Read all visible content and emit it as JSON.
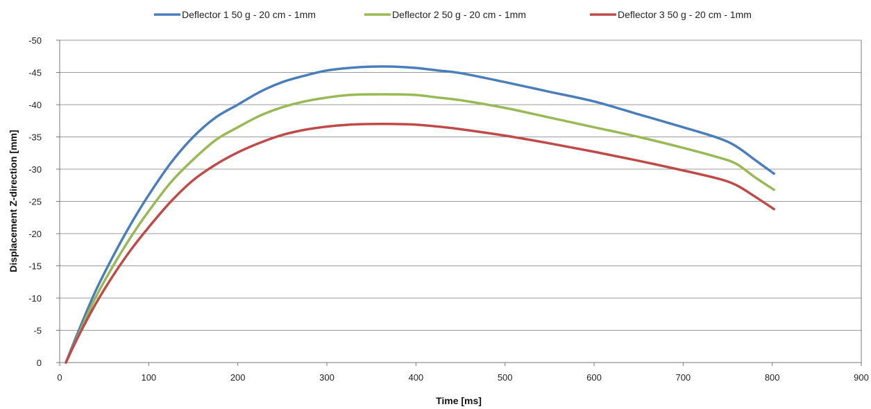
{
  "chart_data": {
    "type": "line",
    "xlabel": "Time [ms]",
    "ylabel": "Displacement Z-direction [mm]",
    "xlim": [
      0,
      900
    ],
    "ylim": [
      0,
      -50
    ],
    "y_axis_inverted": true,
    "xticks": [
      0,
      100,
      200,
      300,
      400,
      500,
      600,
      700,
      800,
      900
    ],
    "yticks": [
      0,
      -5,
      -10,
      -15,
      -20,
      -25,
      -30,
      -35,
      -40,
      -45,
      -50
    ],
    "grid": "horizontal",
    "legend_position": "top",
    "series": [
      {
        "name": "Deflector 1 50 g - 20 cm - 1mm",
        "color": "#4a7ebb",
        "x": [
          7,
          20,
          40,
          60,
          80,
          100,
          125,
          150,
          175,
          200,
          225,
          250,
          275,
          300,
          325,
          350,
          375,
          400,
          425,
          450,
          500,
          550,
          600,
          650,
          700,
          740,
          760,
          780,
          802
        ],
        "y": [
          0,
          -4.5,
          -11,
          -16.5,
          -21.5,
          -26,
          -31,
          -35,
          -38,
          -40,
          -42,
          -43.5,
          -44.5,
          -45.3,
          -45.7,
          -45.9,
          -45.9,
          -45.7,
          -45.3,
          -44.9,
          -43.5,
          -42,
          -40.5,
          -38.5,
          -36.5,
          -34.8,
          -33.5,
          -31.5,
          -29.3
        ]
      },
      {
        "name": "Deflector 2 50 g - 20 cm - 1mm",
        "color": "#98b954",
        "x": [
          7,
          20,
          40,
          60,
          80,
          100,
          125,
          150,
          175,
          200,
          225,
          250,
          275,
          300,
          325,
          350,
          375,
          400,
          425,
          450,
          500,
          550,
          600,
          650,
          700,
          740,
          760,
          780,
          802
        ],
        "y": [
          0,
          -4,
          -10,
          -15,
          -19.5,
          -23.5,
          -28,
          -31.5,
          -34.5,
          -36.5,
          -38.3,
          -39.6,
          -40.5,
          -41.1,
          -41.5,
          -41.6,
          -41.6,
          -41.5,
          -41.1,
          -40.7,
          -39.5,
          -38,
          -36.5,
          -35,
          -33.3,
          -31.8,
          -30.8,
          -28.8,
          -26.8
        ]
      },
      {
        "name": "Deflector 3 50 g - 20 cm - 1mm",
        "color": "#be4b48",
        "x": [
          7,
          20,
          40,
          60,
          80,
          100,
          125,
          150,
          175,
          200,
          225,
          250,
          275,
          300,
          325,
          350,
          375,
          400,
          425,
          450,
          500,
          550,
          600,
          650,
          700,
          740,
          760,
          780,
          802
        ],
        "y": [
          0,
          -3.8,
          -9,
          -13.5,
          -17.5,
          -21,
          -25,
          -28.3,
          -30.7,
          -32.6,
          -34.1,
          -35.3,
          -36.1,
          -36.6,
          -36.9,
          -37.0,
          -37.0,
          -36.9,
          -36.6,
          -36.2,
          -35.2,
          -34,
          -32.7,
          -31.3,
          -29.8,
          -28.5,
          -27.5,
          -25.8,
          -23.8
        ]
      }
    ]
  }
}
